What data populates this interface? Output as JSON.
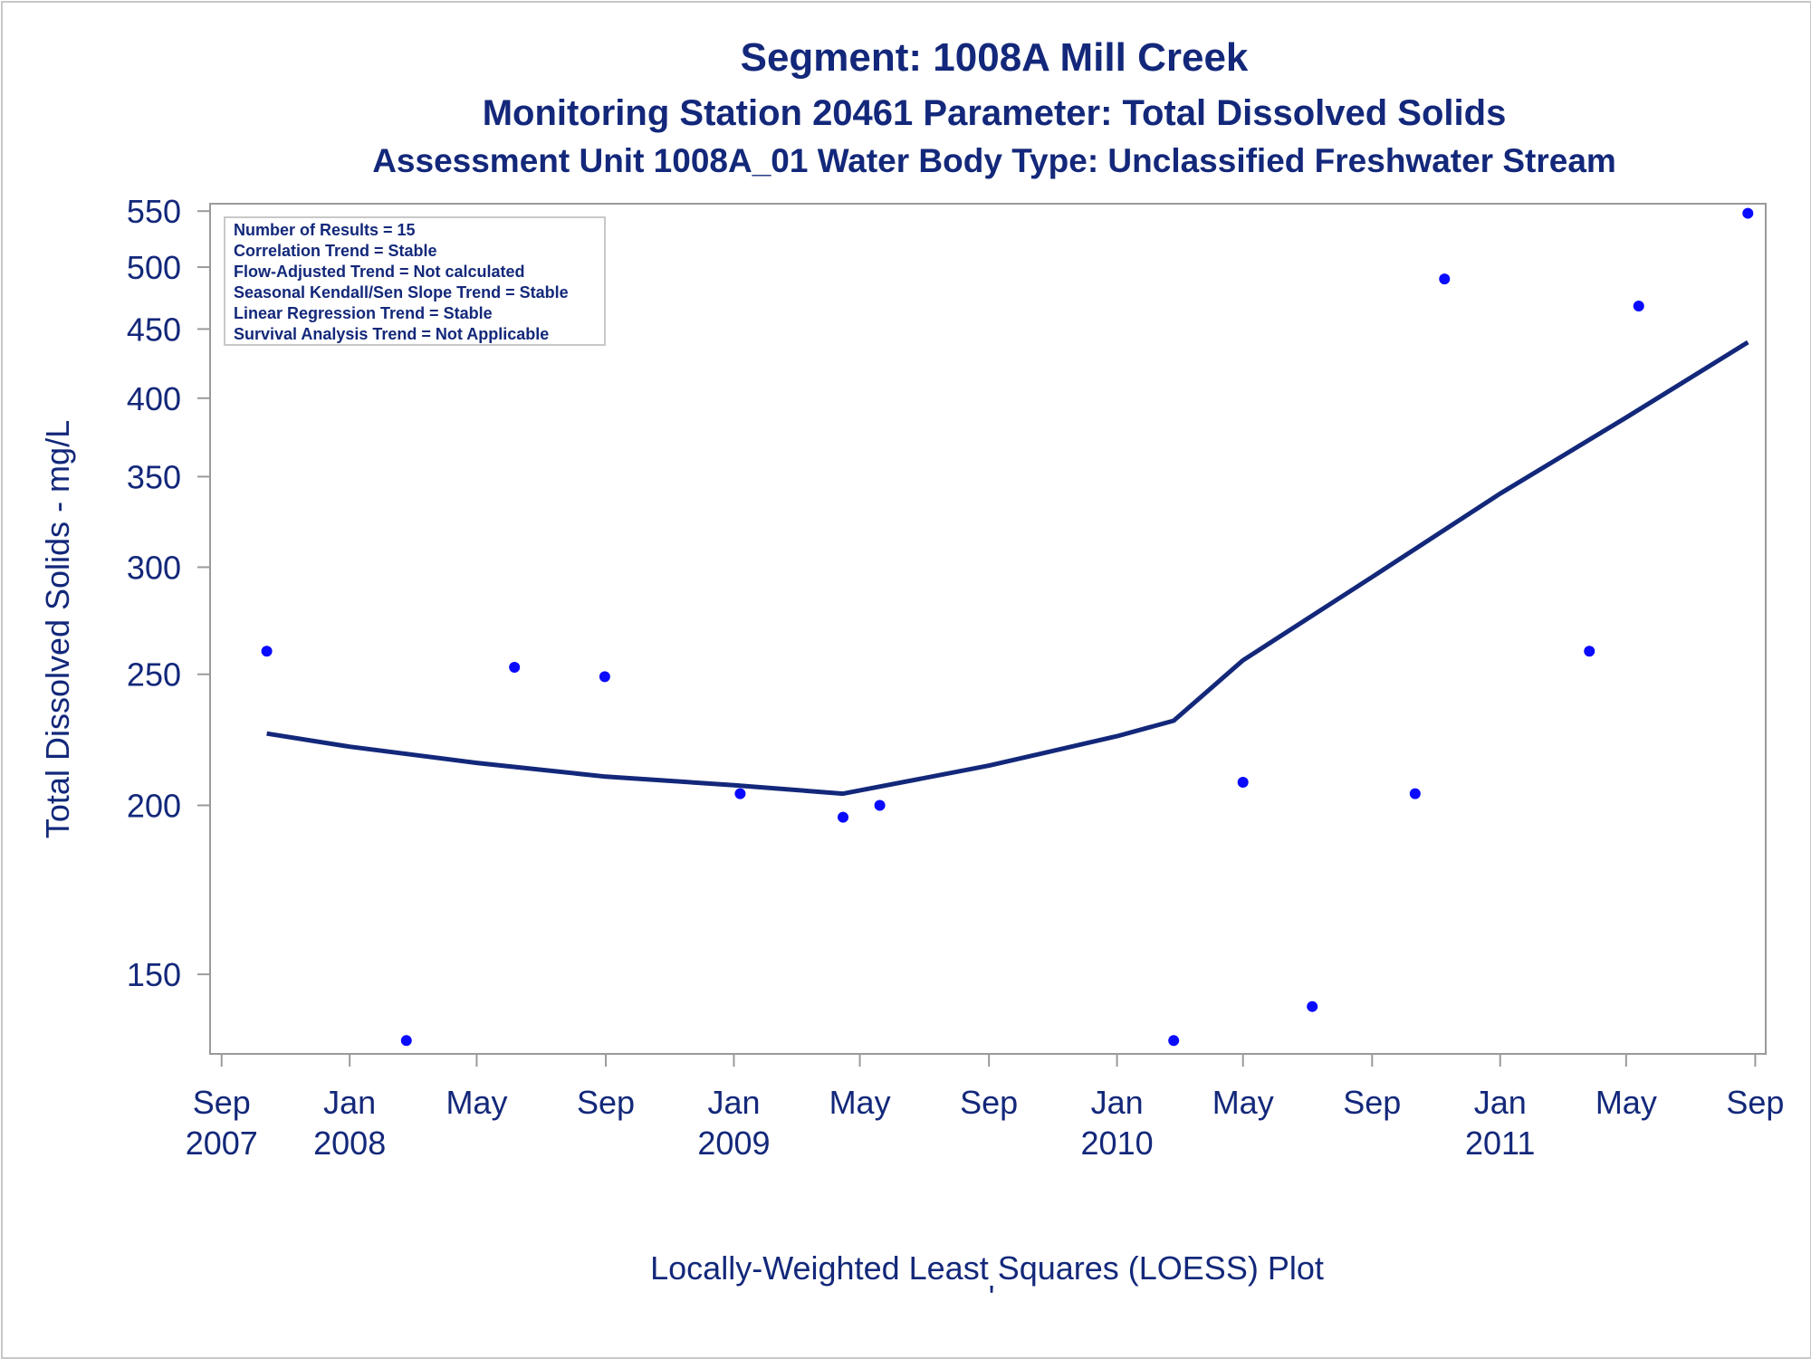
{
  "chart_data": {
    "type": "scatter",
    "title": "Segment: 1008A  Mill Creek",
    "subtitle": "Monitoring Station 20461 Parameter: Total Dissolved Solids",
    "subtitle2": "Assessment Unit 1008A_01   Water Body Type: Unclassified Freshwater Stream",
    "xlabel": "",
    "ylabel": "Total Dissolved Solids - mg/L",
    "footnote": "Locally-Weighted Least Squares (LOESS) Plot",
    "footnote_mark": "'",
    "y_scale": "log",
    "ylim": [
      131,
      557
    ],
    "xlim": [
      "2007-08-21",
      "2011-09-11"
    ],
    "y_ticks": [
      150,
      200,
      250,
      300,
      350,
      400,
      450,
      500,
      550
    ],
    "x_ticks": [
      {
        "date": "2007-09-01",
        "month": "Sep",
        "year": "2007"
      },
      {
        "date": "2008-01-01",
        "month": "Jan",
        "year": "2008"
      },
      {
        "date": "2008-05-01",
        "month": "May",
        "year": ""
      },
      {
        "date": "2008-09-01",
        "month": "Sep",
        "year": ""
      },
      {
        "date": "2009-01-01",
        "month": "Jan",
        "year": "2009"
      },
      {
        "date": "2009-05-01",
        "month": "May",
        "year": ""
      },
      {
        "date": "2009-09-01",
        "month": "Sep",
        "year": ""
      },
      {
        "date": "2010-01-01",
        "month": "Jan",
        "year": "2010"
      },
      {
        "date": "2010-05-01",
        "month": "May",
        "year": ""
      },
      {
        "date": "2010-09-01",
        "month": "Sep",
        "year": ""
      },
      {
        "date": "2011-01-01",
        "month": "Jan",
        "year": "2011"
      },
      {
        "date": "2011-05-01",
        "month": "May",
        "year": ""
      },
      {
        "date": "2011-09-01",
        "month": "Sep",
        "year": ""
      }
    ],
    "grid": false,
    "legend_placement": "top-left",
    "stats_box": [
      "Number of Results = 15",
      "Correlation Trend = Stable",
      "Flow-Adjusted Trend = Not calculated",
      "Seasonal Kendall/Sen Slope Trend = Stable",
      "Linear Regression Trend = Stable",
      "Survival Analysis Trend = Not Applicable"
    ],
    "series": [
      {
        "type": "scatter",
        "points": [
          {
            "x": "2007-10-14",
            "y": 260
          },
          {
            "x": "2008-02-24",
            "y": 134
          },
          {
            "x": "2008-06-06",
            "y": 253
          },
          {
            "x": "2008-08-31",
            "y": 249
          },
          {
            "x": "2009-01-07",
            "y": 204
          },
          {
            "x": "2009-04-15",
            "y": 196
          },
          {
            "x": "2009-05-20",
            "y": 200
          },
          {
            "x": "2010-02-24",
            "y": 134
          },
          {
            "x": "2010-05-01",
            "y": 208
          },
          {
            "x": "2010-07-06",
            "y": 142
          },
          {
            "x": "2010-10-12",
            "y": 204
          },
          {
            "x": "2010-11-09",
            "y": 490
          },
          {
            "x": "2011-03-27",
            "y": 260
          },
          {
            "x": "2011-05-13",
            "y": 468
          },
          {
            "x": "2011-08-25",
            "y": 548
          }
        ]
      },
      {
        "type": "line",
        "points": [
          {
            "x": "2007-10-14",
            "y": 226
          },
          {
            "x": "2008-01-01",
            "y": 221
          },
          {
            "x": "2008-05-01",
            "y": 215
          },
          {
            "x": "2008-09-01",
            "y": 210
          },
          {
            "x": "2009-01-01",
            "y": 207
          },
          {
            "x": "2009-04-15",
            "y": 204
          },
          {
            "x": "2009-09-01",
            "y": 214
          },
          {
            "x": "2010-01-01",
            "y": 225
          },
          {
            "x": "2010-02-24",
            "y": 231
          },
          {
            "x": "2010-05-01",
            "y": 256
          },
          {
            "x": "2010-09-01",
            "y": 295
          },
          {
            "x": "2011-01-01",
            "y": 340
          },
          {
            "x": "2011-05-01",
            "y": 387
          },
          {
            "x": "2011-08-25",
            "y": 440
          }
        ]
      }
    ],
    "colors": {
      "text": "#13287a",
      "line": "#13287a",
      "points": "#0a0aff",
      "axis": "#9a9a9a"
    }
  }
}
